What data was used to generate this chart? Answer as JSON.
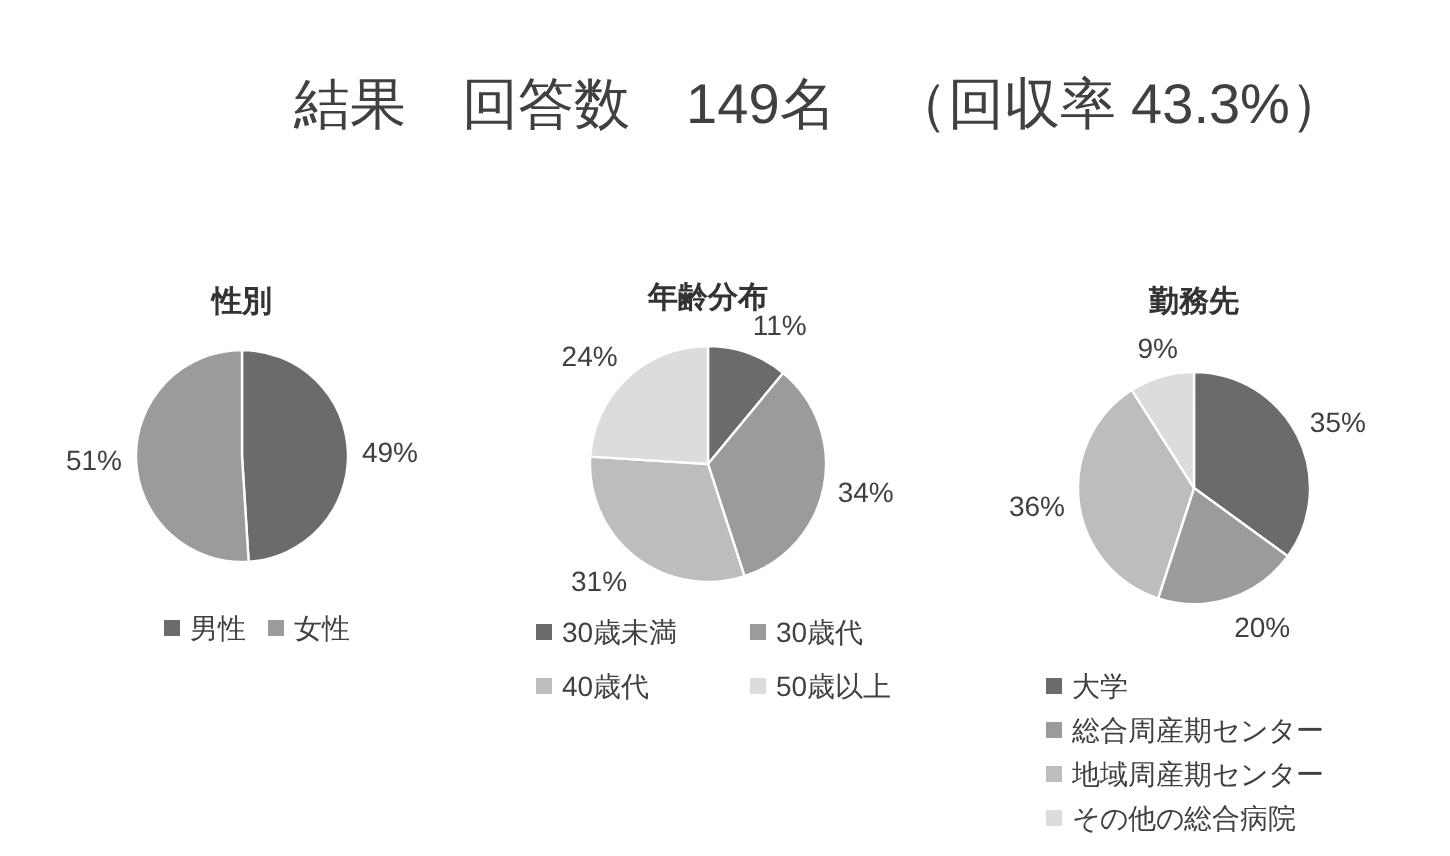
{
  "chart_data": [
    {
      "type": "other",
      "title": "結果　回答数　149名　（回収率 43.3%）"
    },
    {
      "type": "pie",
      "title": "性別",
      "categories": [
        "男性",
        "女性"
      ],
      "values": [
        49,
        51
      ],
      "colors": [
        "#6b6b6b",
        "#9b9b9b"
      ],
      "value_labels": [
        "49%",
        "51%"
      ],
      "legend": "bottom"
    },
    {
      "type": "pie",
      "title": "年齢分布",
      "categories": [
        "30歳未満",
        "30歳代",
        "40歳代",
        "50歳以上"
      ],
      "values": [
        11,
        34,
        31,
        24
      ],
      "colors": [
        "#6b6b6b",
        "#9b9b9b",
        "#bdbdbd",
        "#dcdcdc"
      ],
      "value_labels": [
        "11%",
        "34%",
        "31%",
        "24%"
      ],
      "legend": "bottom"
    },
    {
      "type": "pie",
      "title": "勤務先",
      "categories": [
        "大学",
        "総合周産期センター",
        "地域周産期センター",
        "その他の総合病院"
      ],
      "values": [
        35,
        20,
        36,
        9
      ],
      "colors": [
        "#6b6b6b",
        "#9b9b9b",
        "#bdbdbd",
        "#dcdcdc"
      ],
      "value_labels": [
        "35%",
        "20%",
        "36%",
        "9%"
      ],
      "legend": "bottom"
    }
  ]
}
